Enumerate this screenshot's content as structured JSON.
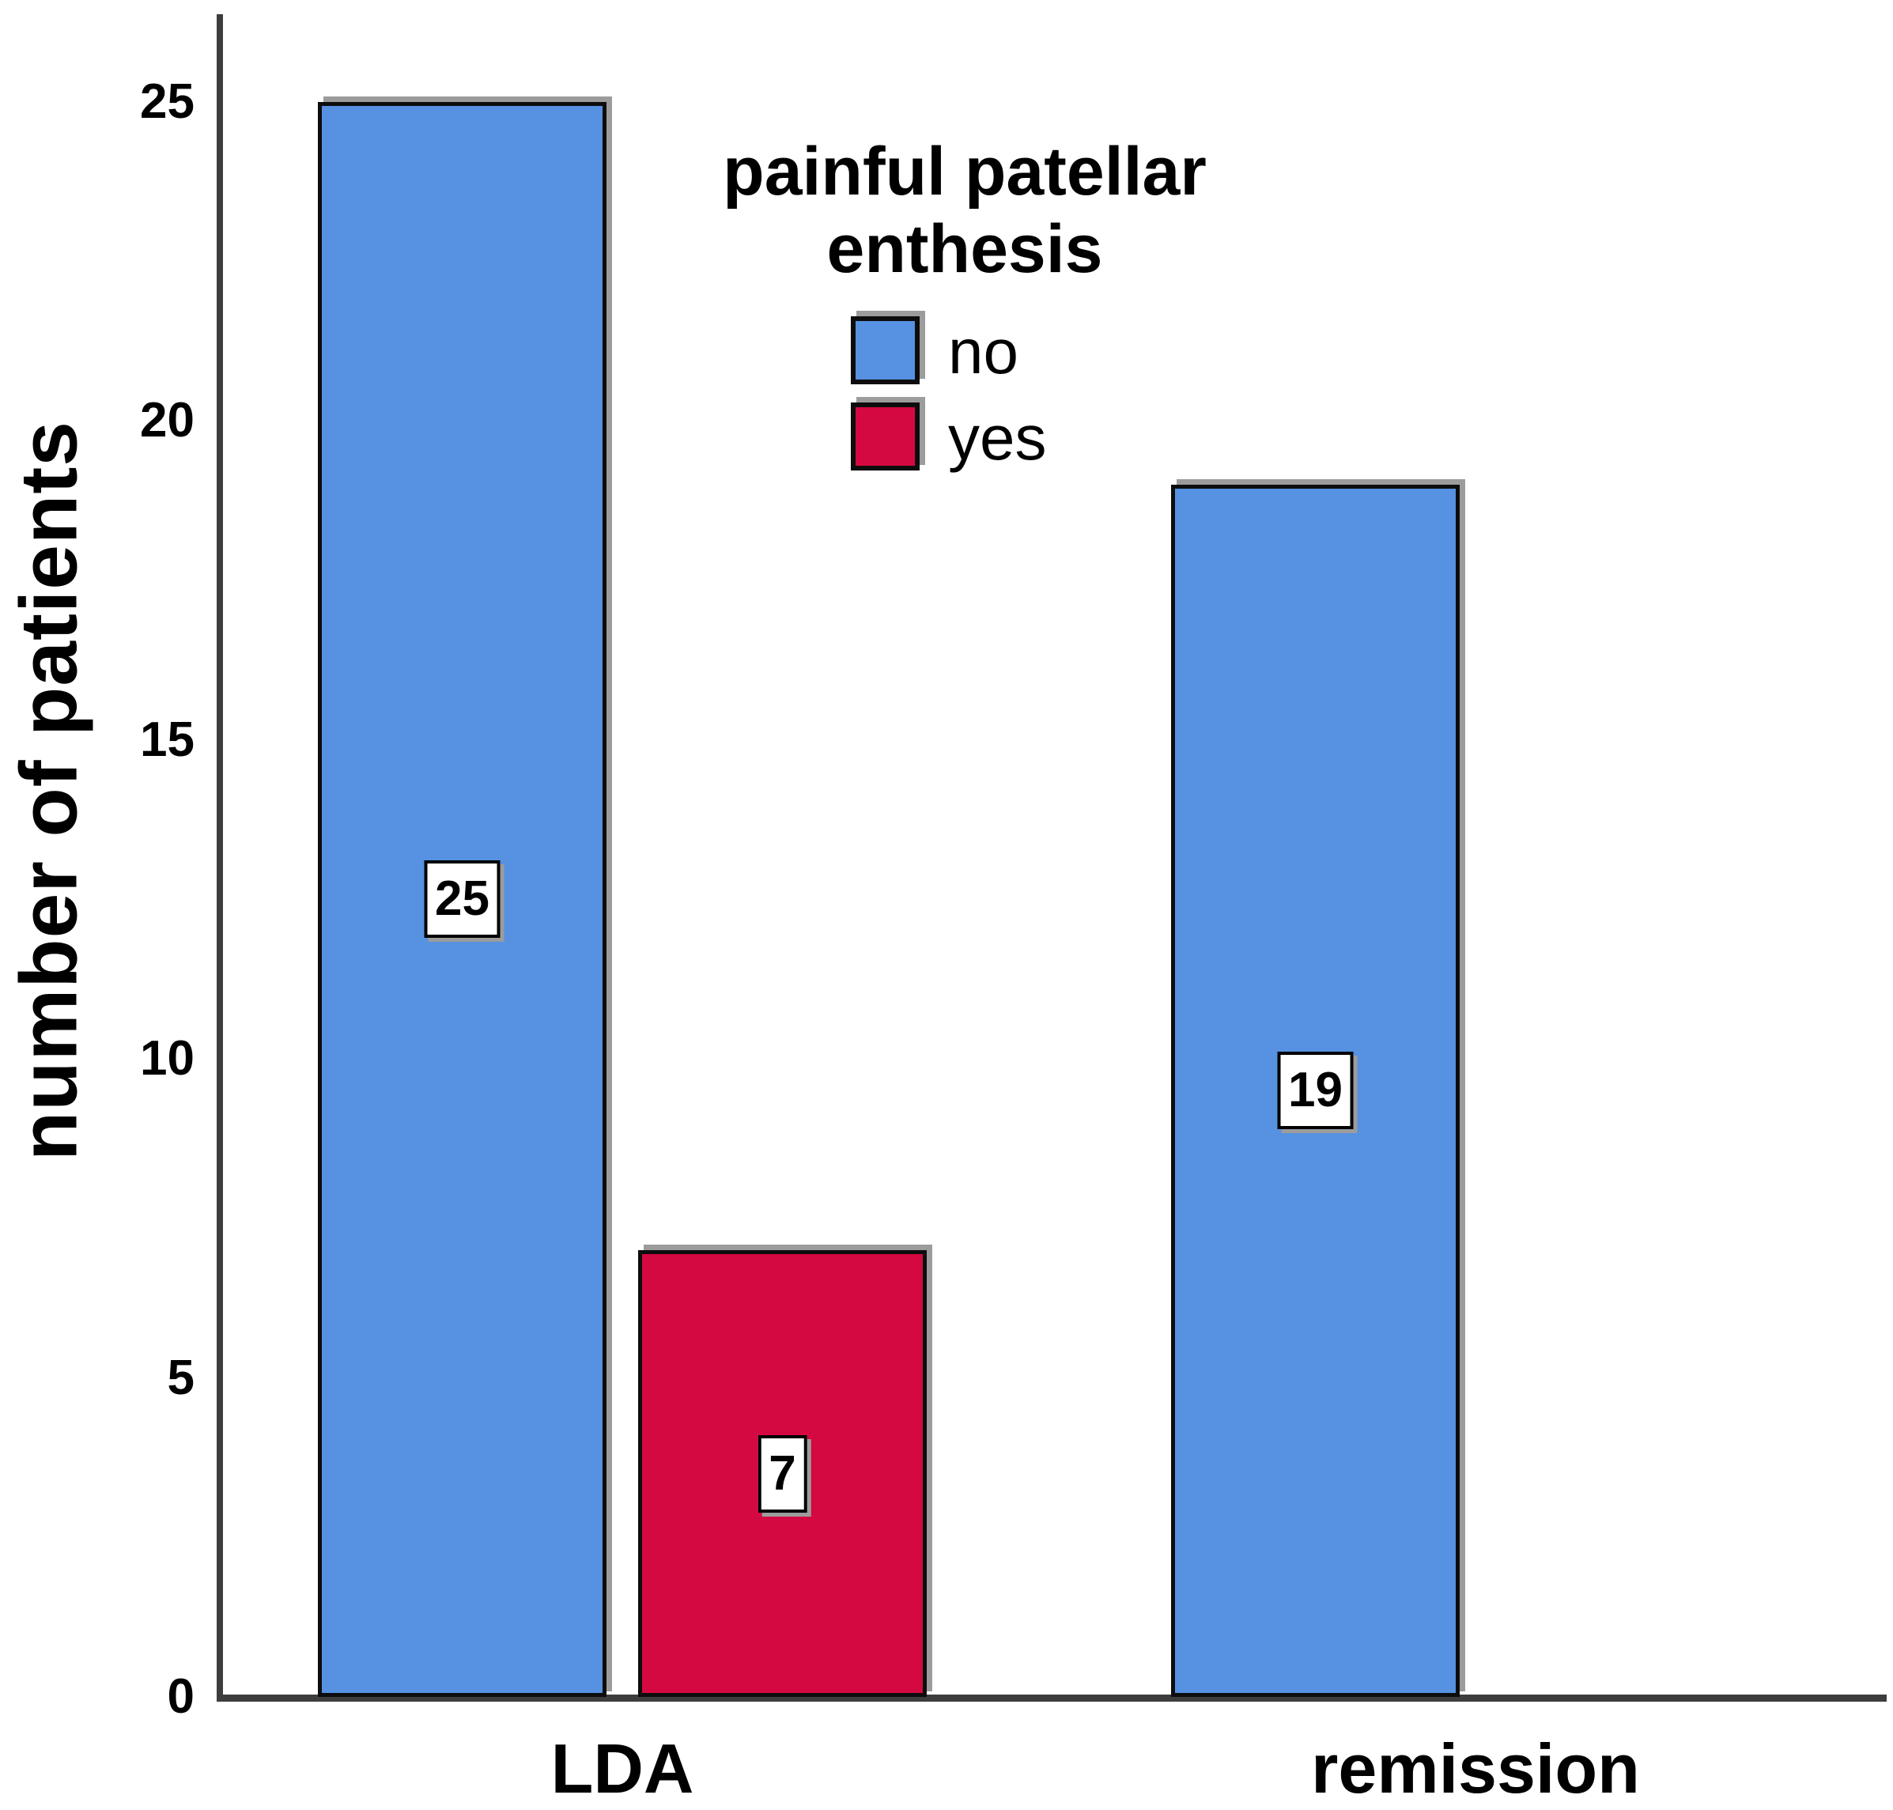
{
  "chart_data": {
    "type": "bar",
    "title": "",
    "xlabel": "",
    "ylabel": "number of patients",
    "categories": [
      "LDA",
      "remission"
    ],
    "series": [
      {
        "name": "no",
        "color": "#5691e2",
        "values": [
          25,
          19
        ]
      },
      {
        "name": "yes",
        "color": "#d50941",
        "values": [
          7,
          null
        ]
      }
    ],
    "bar_value_labels": [
      "25",
      "7",
      "19"
    ],
    "value_label_style": "white box with black border centered at bar mid-height",
    "yticks": [
      25,
      20,
      15,
      10,
      5,
      0
    ],
    "ylim": [
      0,
      26.3
    ],
    "grid": false,
    "legend": {
      "title": "painful patellar enthesis",
      "title_lines": [
        "painful patellar",
        "enthesis"
      ],
      "position": "upper-center",
      "items": [
        {
          "label": "no",
          "color": "#5691e2"
        },
        {
          "label": "yes",
          "color": "#d50941"
        }
      ]
    },
    "colors": {
      "bar_blue": "#5691e2",
      "bar_red": "#d50941",
      "bar_border": "#0d0d0d",
      "axis_line": "#3d3d3d",
      "text": "#000000",
      "shadow": "#9c9c9c",
      "background": "#ffffff"
    }
  }
}
